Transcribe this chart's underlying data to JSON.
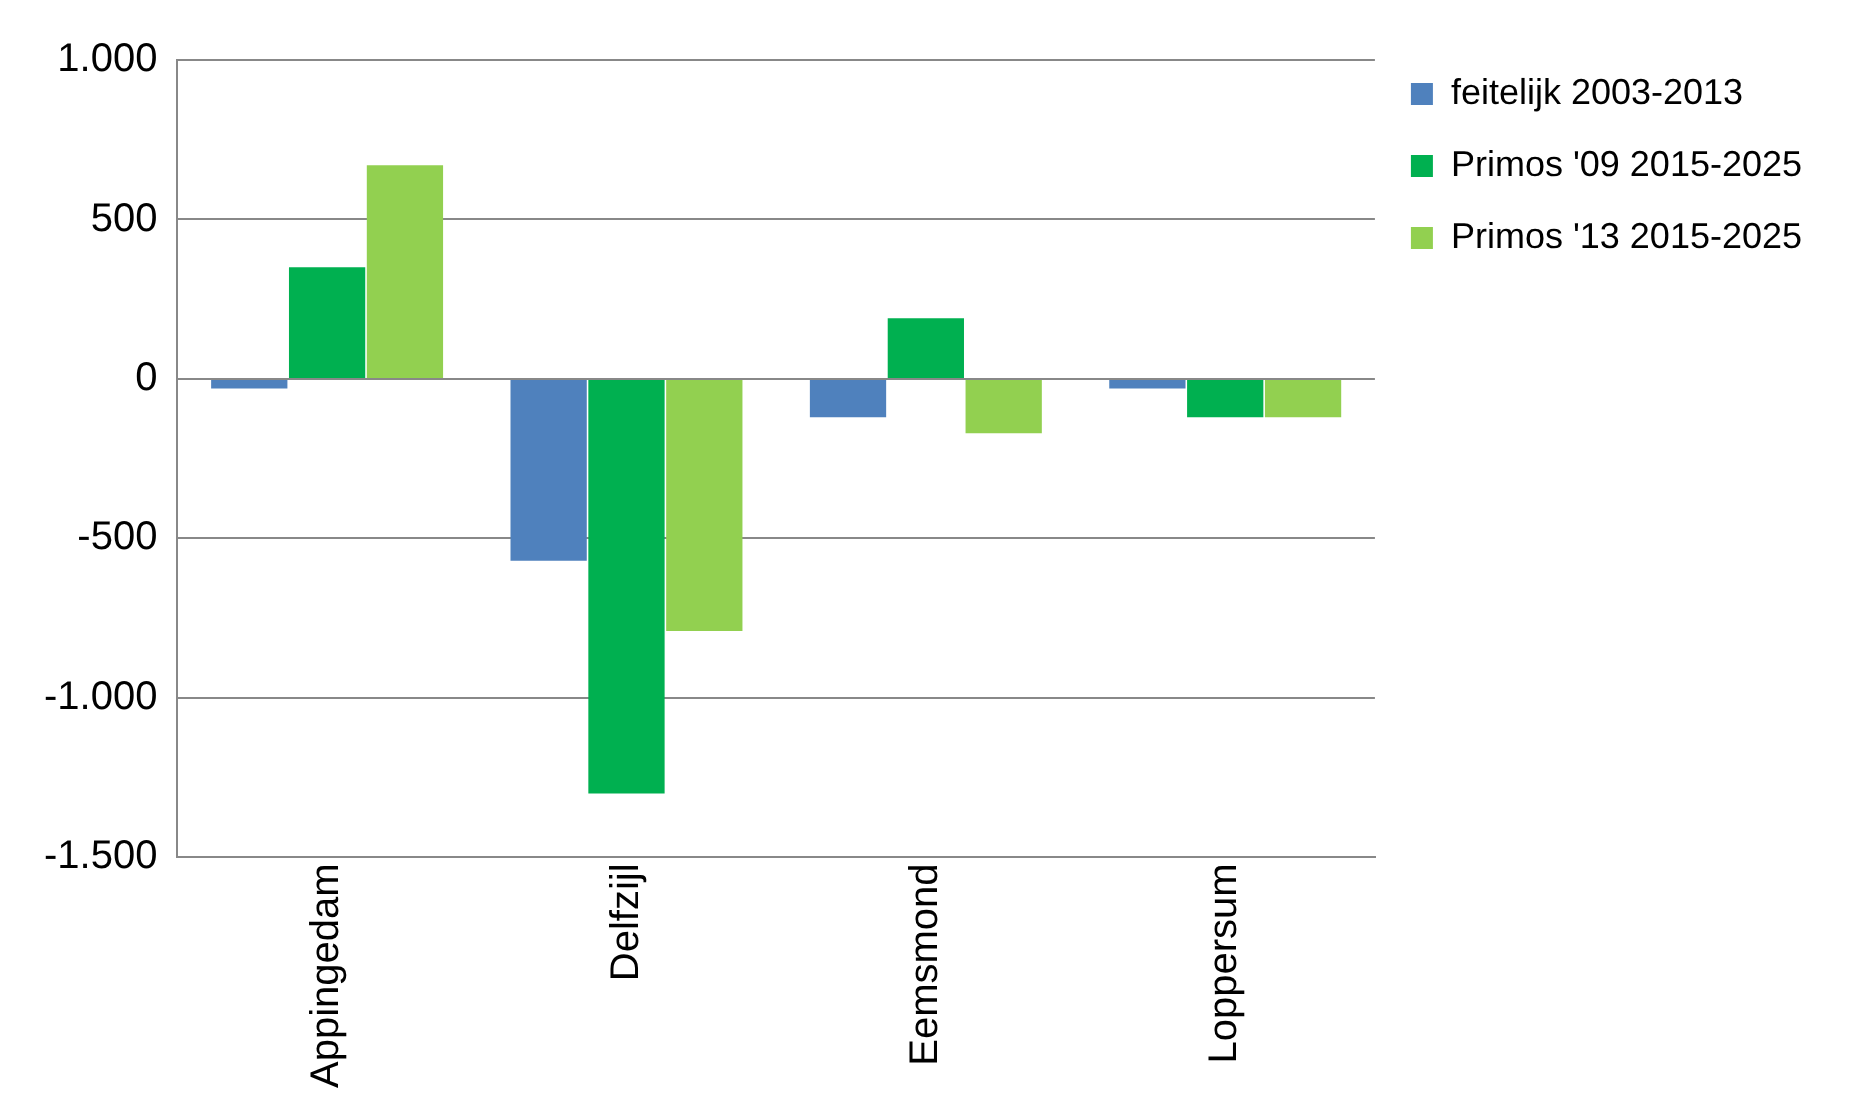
{
  "chart_data": {
    "type": "bar",
    "categories": [
      "Appingedam",
      "Delfzijl",
      "Eemsmond",
      "Loppersum"
    ],
    "series": [
      {
        "name": "feitelijk 2003-2013",
        "color": "#4f81bd",
        "values": [
          -30,
          -570,
          -120,
          -30
        ]
      },
      {
        "name": "Primos '09 2015-2025",
        "color": "#00b050",
        "values": [
          350,
          -1300,
          190,
          -120
        ]
      },
      {
        "name": "Primos '13 2015-2025",
        "color": "#92d050",
        "values": [
          670,
          -790,
          -170,
          -120
        ]
      }
    ],
    "ylim": [
      -1500,
      1000
    ],
    "yticks": [
      {
        "value": -1500,
        "label": "-1.500"
      },
      {
        "value": -1000,
        "label": "-1.000"
      },
      -500,
      0,
      500,
      {
        "value": 1000,
        "label": "1.000"
      }
    ],
    "grid": "y",
    "legend": "right"
  }
}
